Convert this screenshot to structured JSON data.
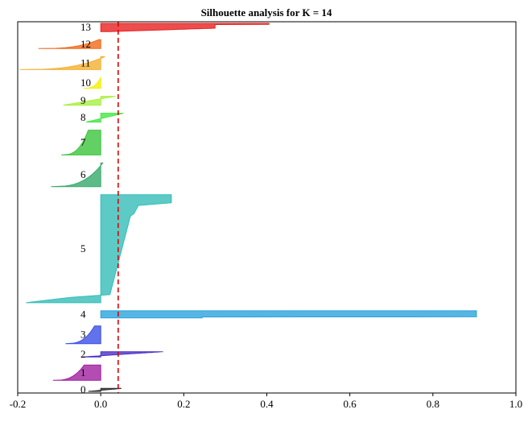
{
  "chart_data": {
    "type": "silhouette",
    "title": "Silhouette analysis for K = 14",
    "xlabel": "",
    "ylabel": "",
    "xlim": [
      -0.2,
      1.0
    ],
    "xticks": [
      "-0.2",
      "0.0",
      "0.2",
      "0.4",
      "0.6",
      "0.8",
      "1.0"
    ],
    "average_silhouette": 0.042,
    "clusters": [
      {
        "label": "0",
        "color": "#2b2b2b",
        "min": -0.03,
        "max": 0.05,
        "size": 5,
        "profile": "thin"
      },
      {
        "label": "1",
        "color": "#a020a0",
        "min": -0.115,
        "max": -0.04,
        "size": 26,
        "profile": "neg"
      },
      {
        "label": "2",
        "color": "#4b2fc4",
        "min": -0.045,
        "max": 0.15,
        "size": 9,
        "profile": "thin"
      },
      {
        "label": "3",
        "color": "#3a4fe6",
        "min": -0.085,
        "max": -0.015,
        "size": 30,
        "profile": "neg"
      },
      {
        "label": "4",
        "color": "#2aa3dc",
        "min": 0.0,
        "max": 0.905,
        "size": 12,
        "profile": "bar"
      },
      {
        "label": "5",
        "color": "#35bdb8",
        "min": -0.18,
        "max": 0.17,
        "size": 183,
        "profile": "big"
      },
      {
        "label": "6",
        "color": "#36aa6a",
        "min": -0.12,
        "max": 0.005,
        "size": 40,
        "profile": "neg"
      },
      {
        "label": "7",
        "color": "#3cc43c",
        "min": -0.095,
        "max": -0.03,
        "size": 42,
        "profile": "neg"
      },
      {
        "label": "8",
        "color": "#46e646",
        "min": -0.035,
        "max": 0.055,
        "size": 15,
        "profile": "mix"
      },
      {
        "label": "9",
        "color": "#a8f040",
        "min": -0.09,
        "max": 0.035,
        "size": 15,
        "profile": "mix"
      },
      {
        "label": "10",
        "color": "#f4f000",
        "min": -0.04,
        "max": 0.0,
        "size": 18,
        "profile": "neg"
      },
      {
        "label": "11",
        "color": "#f4b030",
        "min": -0.195,
        "max": 0.01,
        "size": 22,
        "profile": "neg"
      },
      {
        "label": "12",
        "color": "#f06a1a",
        "min": -0.15,
        "max": -0.005,
        "size": 15,
        "profile": "neg"
      },
      {
        "label": "13",
        "color": "#e82020",
        "min": 0.0,
        "max": 0.405,
        "size": 14,
        "profile": "pos"
      }
    ]
  }
}
